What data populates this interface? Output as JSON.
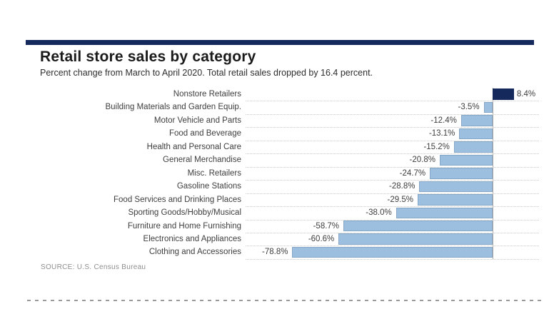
{
  "header": {
    "title": "Retail store sales by category",
    "subtitle": "Percent change from March to April 2020. Total retail sales dropped by 16.4 percent."
  },
  "source": {
    "text": "SOURCE: U.S. Census Bureau"
  },
  "chart_data": {
    "type": "bar",
    "orientation": "horizontal",
    "title": "Retail store sales by category",
    "subtitle": "Percent change from March to April 2020. Total retail sales dropped by 16.4 percent.",
    "unit": "percent",
    "xlim": [
      -100,
      20
    ],
    "grid": "row-separators-dotted",
    "categories": [
      "Nonstore Retailers",
      "Building Materials and Garden Equip.",
      "Motor Vehicle and Parts",
      "Food and Beverage",
      "Health and Personal Care",
      "General Merchandise",
      "Misc. Retailers",
      "Gasoline Stations",
      "Food Services and Drinking Places",
      "Sporting Goods/Hobby/Musical",
      "Furniture and Home Furnishing",
      "Electronics and Appliances",
      "Clothing and Accessories"
    ],
    "values": [
      8.4,
      -3.5,
      -12.4,
      -13.1,
      -15.2,
      -20.8,
      -24.7,
      -28.8,
      -29.5,
      -38.0,
      -58.7,
      -60.6,
      -78.8
    ],
    "value_labels": [
      "8.4%",
      "-3.5%",
      "-12.4%",
      "-13.1%",
      "-15.2%",
      "-20.8%",
      "-24.7%",
      "-28.8%",
      "-29.5%",
      "-38.0%",
      "-58.7%",
      "-60.6%",
      "-78.8%"
    ],
    "colors": {
      "positive_bar": "#16295c",
      "negative_bar": "#9cbfdf",
      "negative_bar_border": "#86a6c5",
      "header_rule": "#16295c",
      "separator": "#c9c9c9",
      "axis_line": "#ababab",
      "label_text": "#3e3e3e"
    }
  }
}
